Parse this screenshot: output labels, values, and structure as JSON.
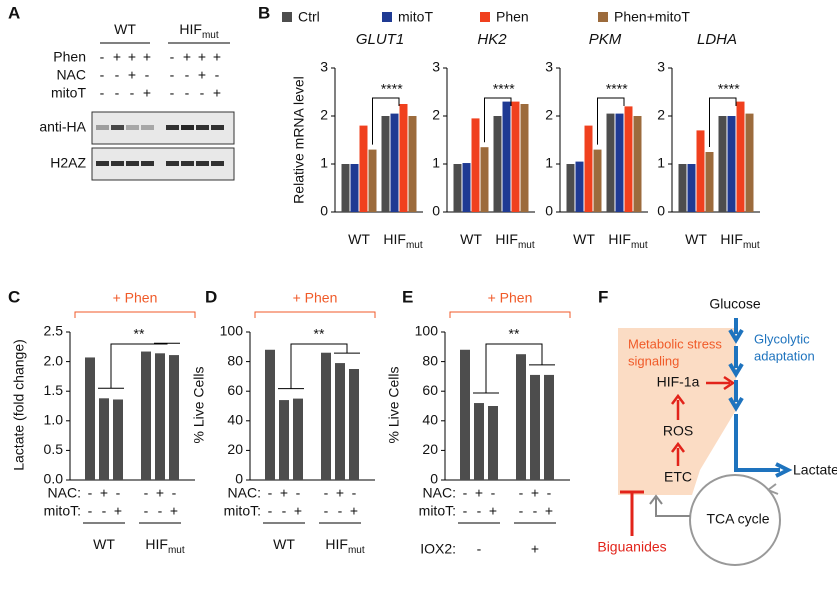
{
  "panel_labels": [
    "A",
    "B",
    "C",
    "D",
    "E",
    "F"
  ],
  "blot": {
    "groups": [
      {
        "text": "WT"
      },
      {
        "text": "HIF",
        "sub": "mut"
      }
    ],
    "rows": [
      {
        "label": "Phen",
        "signs": [
          "-",
          "+",
          "+",
          "+",
          "-",
          "+",
          "+",
          "+"
        ]
      },
      {
        "label": "NAC",
        "signs": [
          "-",
          "-",
          "+",
          "-",
          "-",
          "-",
          "+",
          "-"
        ]
      },
      {
        "label": "mitoT",
        "signs": [
          "-",
          "-",
          "-",
          "+",
          "-",
          "-",
          "-",
          "+"
        ]
      }
    ],
    "blots": [
      "anti-HA",
      "H2AZ"
    ]
  },
  "chart_data": [
    {
      "type": "bar",
      "ylabel": "Relative mRNA level",
      "series": [
        {
          "name": "Ctrl",
          "color": "#4d4d4d"
        },
        {
          "name": "mitoT",
          "color": "#1f3a93"
        },
        {
          "name": "Phen",
          "color": "#f0401e"
        },
        {
          "name": "Phen+mitoT",
          "color": "#9c6b3c"
        }
      ],
      "ylim": [
        0,
        3
      ],
      "yticks": [
        0,
        1,
        2,
        3
      ],
      "facets": [
        {
          "title": "GLUT1",
          "groups": [
            {
              "text": "WT"
            },
            {
              "text": "HIF",
              "sub": "mut"
            }
          ],
          "values": [
            [
              1.0,
              2.0
            ],
            [
              1.0,
              2.05
            ],
            [
              1.8,
              2.25
            ],
            [
              1.3,
              2.0
            ]
          ],
          "annotation": "****"
        },
        {
          "title": "HK2",
          "groups": [
            {
              "text": "WT"
            },
            {
              "text": "HIF",
              "sub": "mut"
            }
          ],
          "values": [
            [
              1.0,
              2.0
            ],
            [
              1.02,
              2.3
            ],
            [
              1.95,
              2.3
            ],
            [
              1.35,
              2.25
            ]
          ],
          "annotation": "****"
        },
        {
          "title": "PKM",
          "groups": [
            {
              "text": "WT"
            },
            {
              "text": "HIF",
              "sub": "mut"
            }
          ],
          "values": [
            [
              1.0,
              2.05
            ],
            [
              1.05,
              2.05
            ],
            [
              1.8,
              2.2
            ],
            [
              1.3,
              2.0
            ]
          ],
          "annotation": "****"
        },
        {
          "title": "LDHA",
          "groups": [
            {
              "text": "WT"
            },
            {
              "text": "HIF",
              "sub": "mut"
            }
          ],
          "values": [
            [
              1.0,
              2.0
            ],
            [
              1.0,
              2.0
            ],
            [
              1.7,
              2.3
            ],
            [
              1.25,
              2.05
            ]
          ],
          "annotation": "****"
        }
      ]
    },
    {
      "type": "bar",
      "title": "+ Phen",
      "ylabel": "Lactate (fold change)",
      "color": "#4d4d4d",
      "values": [
        2.07,
        1.38,
        1.36,
        2.17,
        2.14,
        2.11
      ],
      "ylim": [
        0,
        2.5
      ],
      "yticks": [
        {
          "value": 0,
          "label": "0.0"
        },
        0.5,
        {
          "value": 1,
          "label": "1.0"
        },
        1.5,
        {
          "value": 2,
          "label": "2.0"
        },
        2.5
      ],
      "annotation": "**",
      "condition_rows": [
        {
          "label": "NAC:",
          "signs": [
            "-",
            "+",
            "-",
            "-",
            "+",
            "-"
          ]
        },
        {
          "label": "mitoT:",
          "signs": [
            "-",
            "-",
            "+",
            "-",
            "-",
            "+"
          ]
        }
      ],
      "groups": [
        {
          "text": "WT"
        },
        {
          "text": "HIF",
          "sub": "mut"
        }
      ]
    },
    {
      "type": "bar",
      "title": "+ Phen",
      "ylabel": "% Live Cells",
      "color": "#4d4d4d",
      "values": [
        88,
        54,
        55,
        86,
        79,
        75
      ],
      "ylim": [
        0,
        100
      ],
      "yticks": [
        0,
        20,
        40,
        60,
        80,
        100
      ],
      "annotation": "**",
      "condition_rows": [
        {
          "label": "NAC:",
          "signs": [
            "-",
            "+",
            "-",
            "-",
            "+",
            "-"
          ]
        },
        {
          "label": "mitoT:",
          "signs": [
            "-",
            "-",
            "+",
            "-",
            "-",
            "+"
          ]
        }
      ],
      "groups": [
        {
          "text": "WT"
        },
        {
          "text": "HIF",
          "sub": "mut"
        }
      ]
    },
    {
      "type": "bar",
      "title": "+ Phen",
      "ylabel": "% Live Cells",
      "color": "#4d4d4d",
      "values": [
        88,
        52,
        50,
        85,
        71,
        71
      ],
      "ylim": [
        0,
        100
      ],
      "yticks": [
        0,
        20,
        40,
        60,
        80,
        100
      ],
      "annotation": "**",
      "condition_rows": [
        {
          "label": "NAC:",
          "signs": [
            "-",
            "+",
            "-",
            "-",
            "+",
            "-"
          ]
        },
        {
          "label": "mitoT:",
          "signs": [
            "-",
            "-",
            "+",
            "-",
            "-",
            "+"
          ]
        },
        {
          "label": "IOX2:",
          "signs": [
            "-",
            "+"
          ]
        }
      ]
    }
  ],
  "diagram": {
    "glucose": "Glucose",
    "glycolytic": [
      "Glycolytic",
      "adaptation"
    ],
    "stress": [
      "Metabolic stress",
      "signaling"
    ],
    "hif": "HIF-1a",
    "ros": "ROS",
    "etc": "ETC",
    "tca": "TCA cycle",
    "lactate": "Lactate",
    "biguanides": "Biguanides"
  }
}
